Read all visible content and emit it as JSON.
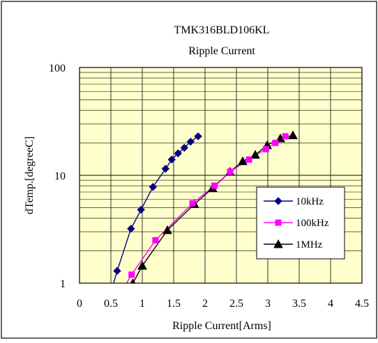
{
  "chart_data": {
    "type": "line",
    "title": "TMK316BLD106KL",
    "subtitle": "Ripple Current",
    "xlabel": "Ripple Current[Arms]",
    "ylabel": "dTemp.[degreeC]",
    "xlim": [
      0,
      4.5
    ],
    "ylim": [
      1,
      100
    ],
    "yscale": "log",
    "xticks": [
      "0",
      "0.5",
      "1",
      "1.5",
      "2",
      "2.5",
      "3",
      "3.5",
      "4",
      "4.5"
    ],
    "yticks": [
      "1",
      "10",
      "100"
    ],
    "grid": true,
    "legend_position": "lower-right",
    "plot_background": "#ffffcc",
    "series": [
      {
        "name": "10kHz",
        "color": "#000080",
        "marker": "diamond",
        "x": [
          0.48,
          0.6,
          0.82,
          0.98,
          1.17,
          1.37,
          1.47,
          1.57,
          1.67,
          1.77,
          1.89
        ],
        "y": [
          0.75,
          1.3,
          3.2,
          4.8,
          7.8,
          11.5,
          14.0,
          16.0,
          18.0,
          20.5,
          23.0
        ]
      },
      {
        "name": "100kHz",
        "color": "#ff00ff",
        "marker": "square",
        "x": [
          0.68,
          0.83,
          1.21,
          1.8,
          2.15,
          2.4,
          2.7,
          2.97,
          3.12,
          3.28
        ],
        "y": [
          0.85,
          1.2,
          2.5,
          5.5,
          8.0,
          10.8,
          14.0,
          17.5,
          20.0,
          23.0
        ]
      },
      {
        "name": "1MHz",
        "color": "#000000",
        "marker": "triangle",
        "x": [
          0.85,
          1.0,
          1.4,
          1.83,
          2.12,
          2.4,
          2.6,
          2.8,
          2.99,
          3.2,
          3.4
        ],
        "y": [
          1.0,
          1.45,
          3.1,
          5.4,
          7.6,
          10.8,
          13.5,
          15.5,
          19.0,
          22.0,
          23.5
        ]
      }
    ]
  }
}
